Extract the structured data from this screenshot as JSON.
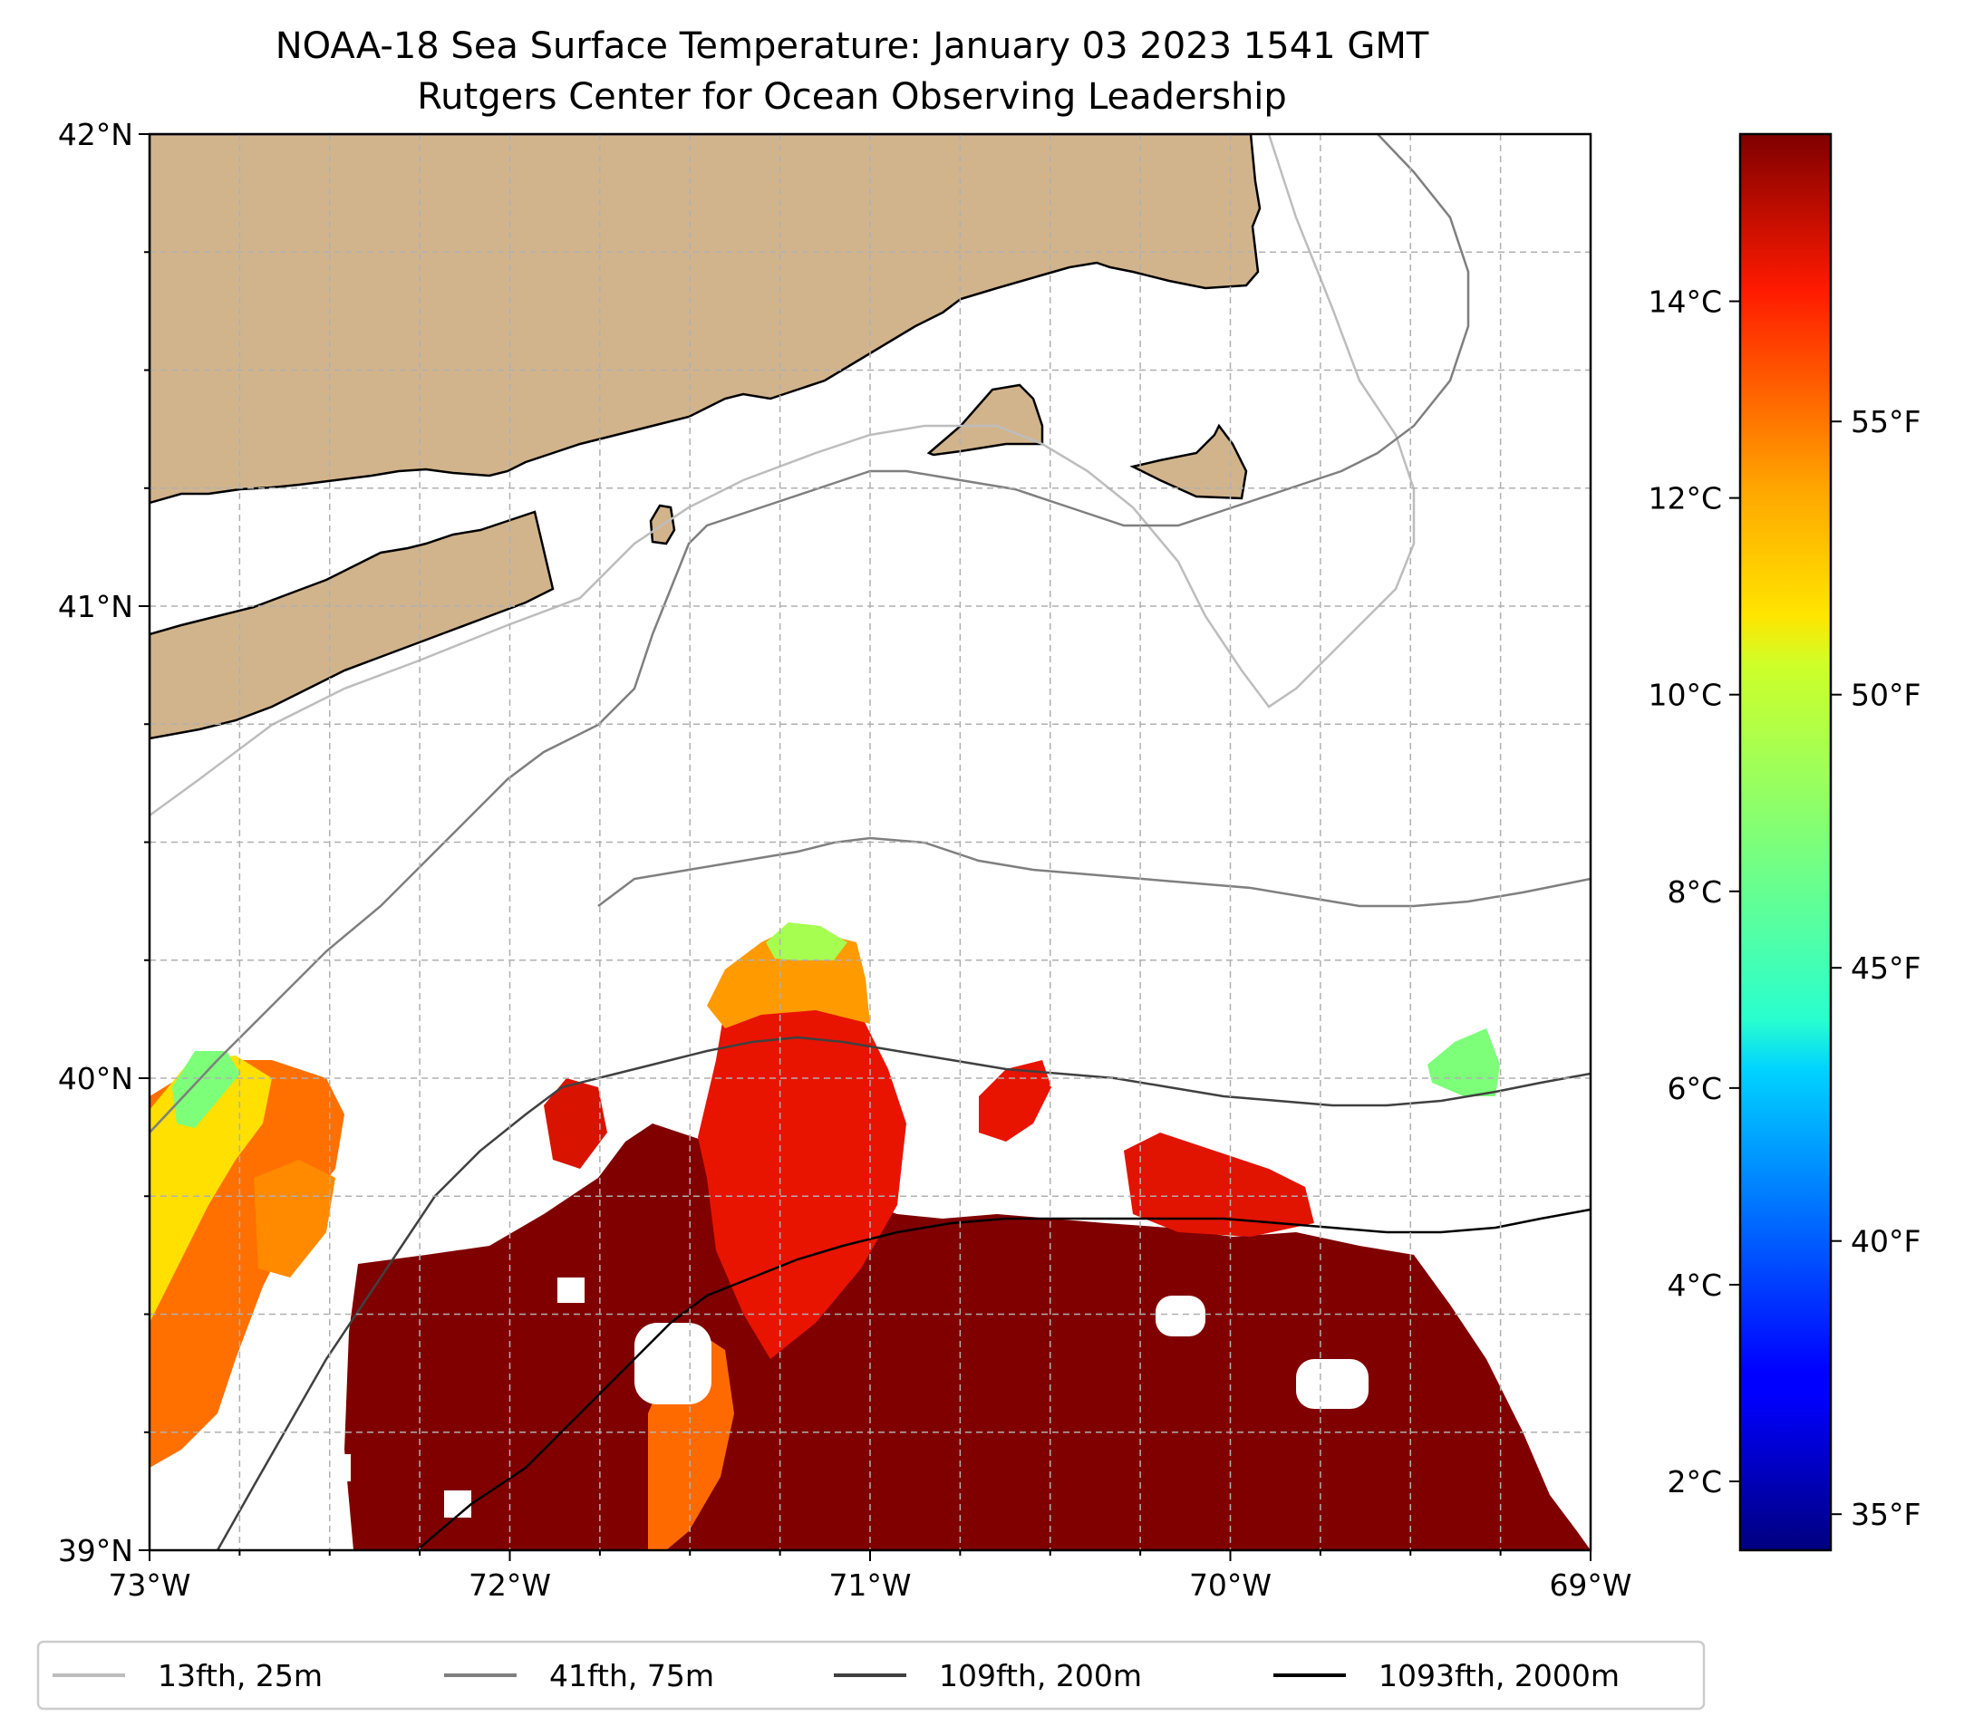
{
  "title": {
    "line1": "NOAA-18 Sea Surface Temperature: January 03 2023 1541 GMT",
    "line2": "Rutgers Center for Ocean Observing Leadership"
  },
  "chart_data": {
    "type": "heatmap",
    "map_extent": {
      "lon": [
        -73,
        -69
      ],
      "lat": [
        39,
        42
      ]
    },
    "x_ticks": [
      {
        "value": -73,
        "label": "73°W"
      },
      {
        "value": -72,
        "label": "72°W"
      },
      {
        "value": -71,
        "label": "71°W"
      },
      {
        "value": -70,
        "label": "70°W"
      },
      {
        "value": -69,
        "label": "69°W"
      }
    ],
    "y_ticks": [
      {
        "value": 39,
        "label": "39°N"
      },
      {
        "value": 40,
        "label": "40°N"
      },
      {
        "value": 41,
        "label": "41°N"
      },
      {
        "value": 42,
        "label": "42°N"
      }
    ],
    "grid": true,
    "colorbar": {
      "colormap": "jet",
      "range_c": [
        1.3,
        15.7
      ],
      "celsius_ticks": [
        {
          "value": 2,
          "label": "2°C"
        },
        {
          "value": 4,
          "label": "4°C"
        },
        {
          "value": 6,
          "label": "6°C"
        },
        {
          "value": 8,
          "label": "8°C"
        },
        {
          "value": 10,
          "label": "10°C"
        },
        {
          "value": 12,
          "label": "12°C"
        },
        {
          "value": 14,
          "label": "14°C"
        }
      ],
      "fahrenheit_ticks": [
        {
          "value": 35,
          "label": "35°F"
        },
        {
          "value": 40,
          "label": "40°F"
        },
        {
          "value": 45,
          "label": "45°F"
        },
        {
          "value": 50,
          "label": "50°F"
        },
        {
          "value": 55,
          "label": "55°F"
        }
      ]
    },
    "legend": {
      "placement": "bottom",
      "entries": [
        {
          "label": "13fth, 25m",
          "color": "#bdbdbd"
        },
        {
          "label": "41fth, 75m",
          "color": "#7f7f7f"
        },
        {
          "label": "109fth, 200m",
          "color": "#404040"
        },
        {
          "label": "1093fth, 2000m",
          "color": "#000000"
        }
      ]
    },
    "colors": {
      "land": "#d2b48c",
      "water": "#ffffff",
      "grid": "#b0b0b0"
    }
  }
}
